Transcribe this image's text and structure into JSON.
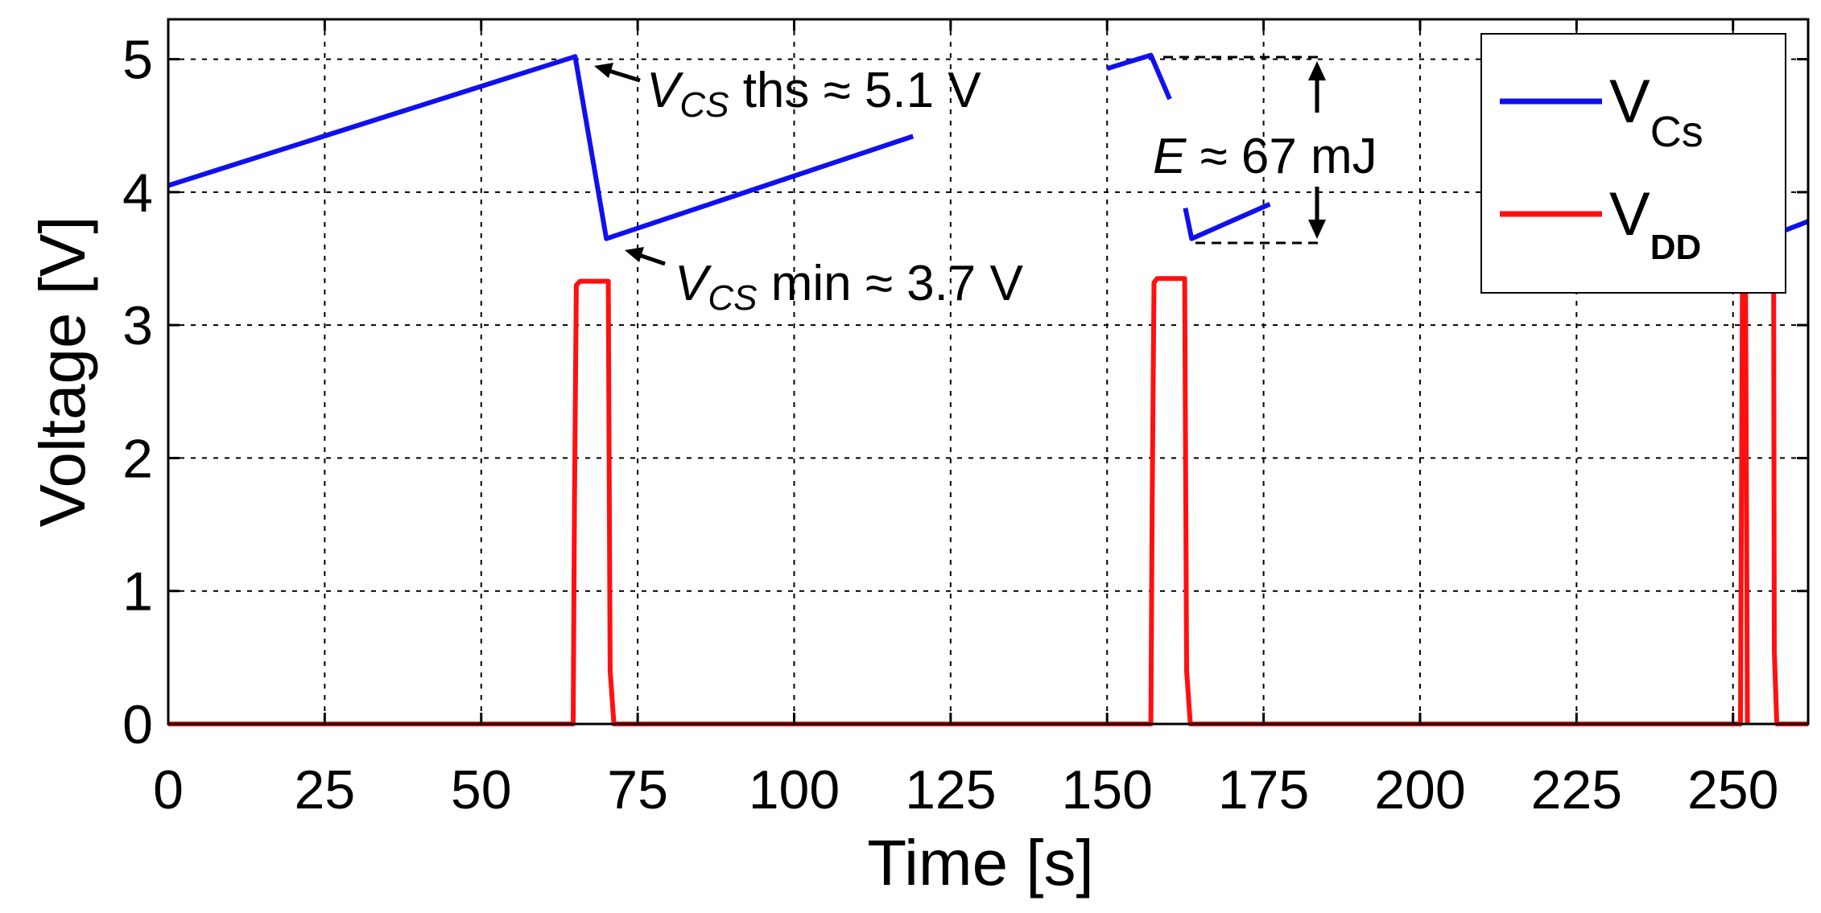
{
  "chart_data": {
    "type": "line",
    "xlabel": "Time [s]",
    "ylabel": "Voltage [V]",
    "xlim": [
      0,
      262
    ],
    "ylim": [
      0,
      5.3
    ],
    "grid": true,
    "legend_position": "top-right",
    "x_ticks": [
      {
        "value": 0,
        "label": "0"
      },
      {
        "value": 25,
        "label": "25"
      },
      {
        "value": 50,
        "label": "50"
      },
      {
        "value": 75,
        "label": "75"
      },
      {
        "value": 100,
        "label": "100"
      },
      {
        "value": 125,
        "label": "125"
      },
      {
        "value": 150,
        "label": "150"
      },
      {
        "value": 175,
        "label": "175"
      },
      {
        "value": 200,
        "label": "200"
      },
      {
        "value": 225,
        "label": "225"
      },
      {
        "value": 250,
        "label": "250"
      }
    ],
    "y_ticks": [
      {
        "value": 0,
        "label": "0"
      },
      {
        "value": 1,
        "label": "1"
      },
      {
        "value": 2,
        "label": "2"
      },
      {
        "value": 3,
        "label": "3"
      },
      {
        "value": 4,
        "label": "4"
      },
      {
        "value": 5,
        "label": "5"
      }
    ],
    "series": [
      {
        "name": "V",
        "subscript": "Cs",
        "color": "#1010ee",
        "segments": [
          [
            [
              0,
              4.05
            ],
            [
              65,
              5.02
            ],
            [
              70,
              3.65
            ],
            [
              119,
              4.42
            ]
          ],
          [
            [
              150,
              4.93
            ],
            [
              157,
              5.03
            ],
            [
              160,
              4.7
            ]
          ],
          [
            [
              162.5,
              3.88
            ],
            [
              163.5,
              3.65
            ],
            [
              176,
              3.91
            ]
          ],
          [
            [
              211.5,
              4.44
            ],
            [
              212.5,
              4.44
            ]
          ],
          [
            [
              256.5,
              3.68
            ],
            [
              262,
              3.78
            ]
          ]
        ]
      },
      {
        "name": "V",
        "subscript": "DD",
        "color": "#ff1010",
        "segments": [
          [
            [
              0,
              0
            ],
            [
              64.7,
              0
            ],
            [
              64.9,
              1.65
            ],
            [
              65.2,
              3.3
            ],
            [
              65.8,
              3.33
            ],
            [
              70.3,
              3.33
            ],
            [
              70.6,
              0.4
            ],
            [
              71.2,
              0
            ],
            [
              157,
              0
            ],
            [
              157.2,
              1.65
            ],
            [
              157.5,
              3.32
            ],
            [
              158,
              3.35
            ],
            [
              162.4,
              3.35
            ],
            [
              162.7,
              0.4
            ],
            [
              163.3,
              0
            ],
            [
              251.2,
              0
            ],
            [
              251.5,
              3.3
            ],
            [
              252,
              3.3
            ],
            [
              252.3,
              0
            ]
          ],
          [
            [
              256.5,
              3.3
            ],
            [
              256.6,
              0.55
            ],
            [
              257,
              0
            ],
            [
              262,
              0
            ]
          ]
        ]
      }
    ],
    "annotations": {
      "vcs_ths": {
        "symbol": "V",
        "subscript": "CS",
        "text": " ths ≈ 5.1 V"
      },
      "vcs_min": {
        "symbol": "V",
        "subscript": "CS",
        "text": " min ≈ 3.7 V"
      },
      "energy": {
        "symbol": "E",
        "text": " ≈ 67 mJ"
      }
    }
  }
}
